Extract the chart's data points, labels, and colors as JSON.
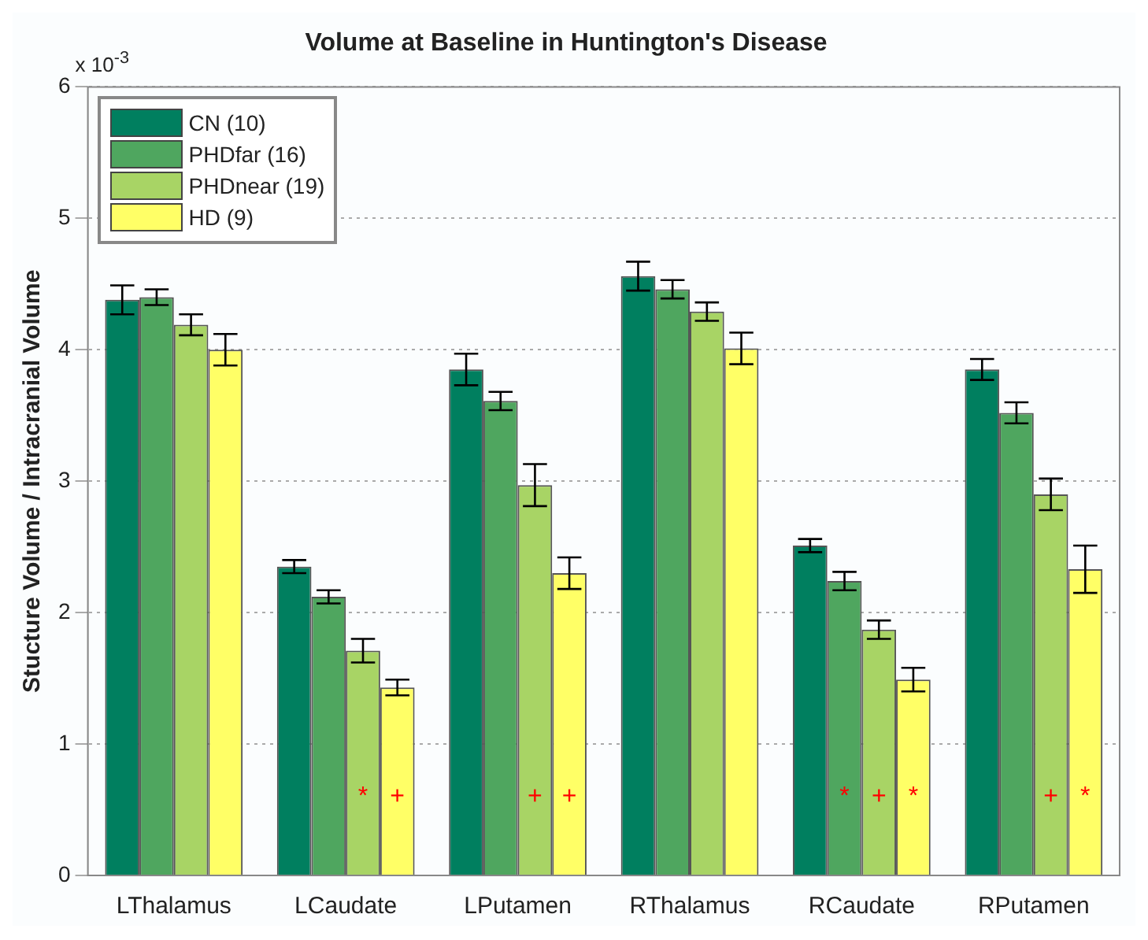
{
  "chart_data": {
    "type": "bar",
    "title": "Volume at Baseline in Huntington's Disease",
    "ylabel": "Stucture Volume / Intracranial Volume",
    "categories": [
      "LThalamus",
      "LCaudate",
      "LPutamen",
      "RThalamus",
      "RCaudate",
      "RPutamen"
    ],
    "series": [
      {
        "name": "CN (10)",
        "color": "#007f5f",
        "values": [
          4.38,
          2.35,
          3.85,
          4.56,
          2.51,
          3.85
        ],
        "errors": [
          0.11,
          0.05,
          0.12,
          0.11,
          0.05,
          0.08
        ]
      },
      {
        "name": "PHDfar (16)",
        "color": "#4fa65f",
        "values": [
          4.4,
          2.12,
          3.61,
          4.46,
          2.24,
          3.52
        ],
        "errors": [
          0.06,
          0.05,
          0.07,
          0.07,
          0.07,
          0.08
        ]
      },
      {
        "name": "PHDnear (19)",
        "color": "#a8d465",
        "values": [
          4.19,
          1.71,
          2.97,
          4.29,
          1.87,
          2.9
        ],
        "errors": [
          0.08,
          0.09,
          0.16,
          0.07,
          0.07,
          0.12
        ]
      },
      {
        "name": "HD (9)",
        "color": "#ffff66",
        "values": [
          4.0,
          1.43,
          2.3,
          4.01,
          1.49,
          2.33
        ],
        "errors": [
          0.12,
          0.06,
          0.12,
          0.12,
          0.09,
          0.18
        ]
      }
    ],
    "ylim": [
      0,
      6
    ],
    "yticks": [
      0,
      1,
      2,
      3,
      4,
      5,
      6
    ],
    "grid": "y",
    "legend": "top left",
    "annotations": [
      "x 10$^{-3}$",
      {
        "text": "*",
        "x": "LCaudate",
        "y": 0.6
      },
      {
        "text": "+",
        "x": "LCaudate",
        "y": 0.6
      },
      {
        "text": "+",
        "x": "LPutamen",
        "y": 0.6
      },
      {
        "text": "+",
        "x": "LPutamen",
        "y": 0.6
      },
      {
        "text": "*",
        "x": "RCaudate",
        "y": 0.6
      },
      {
        "text": "+",
        "x": "RCaudate",
        "y": 0.6
      },
      {
        "text": "*",
        "x": "RCaudate",
        "y": 0.6
      },
      {
        "text": "+",
        "x": "RPutamen",
        "y": 0.6
      },
      {
        "text": "*",
        "x": "RPutamen",
        "y": 0.6
      }
    ]
  }
}
